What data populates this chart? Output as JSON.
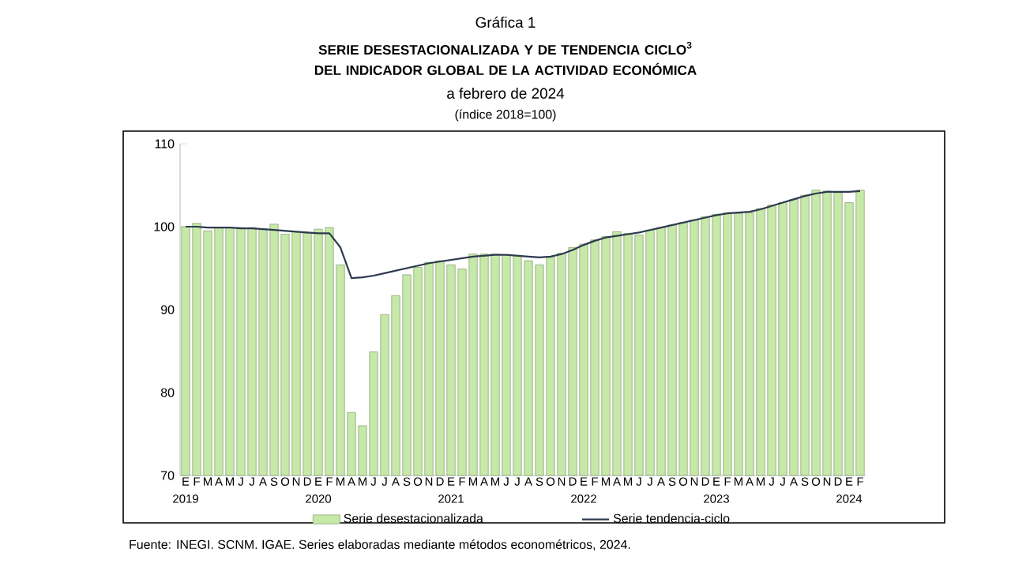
{
  "chart_data": {
    "type": "bar",
    "title": "SERIE DESESTACIONALIZADA Y DE TENDENCIA CICLO$^{3}$ DEL INDICADOR GLOBAL DE LA ACTIVIDAD ECONÓMICA",
    "subtitle": "a febrero de 2024",
    "categories": [
      "E 2019",
      "F",
      "M",
      "A",
      "M",
      "J",
      "J",
      "A",
      "S",
      "O",
      "N",
      "D",
      "E 2020",
      "F",
      "M",
      "A",
      "M",
      "J",
      "J",
      "A",
      "S",
      "O",
      "N",
      "D",
      "E 2021",
      "F",
      "M",
      "A",
      "M",
      "J",
      "J",
      "A",
      "S",
      "O",
      "N",
      "D",
      "E 2022",
      "F",
      "M",
      "A",
      "M",
      "J",
      "J",
      "A",
      "S",
      "O",
      "N",
      "D",
      "E 2023",
      "F",
      "M",
      "A",
      "M",
      "J",
      "J",
      "A",
      "S",
      "O",
      "N",
      "D",
      "E 2024",
      "F"
    ],
    "series": [
      {
        "name": "Serie desestacionalizada",
        "color": "#c6e8a8",
        "values": [
          100.0,
          100.4,
          99.5,
          99.9,
          99.9,
          99.9,
          99.9,
          99.7,
          100.3,
          99.1,
          99.4,
          99.2,
          99.7,
          99.9,
          95.4,
          77.6,
          76.0,
          84.9,
          89.4,
          91.7,
          94.2,
          95.1,
          95.7,
          95.9,
          95.4,
          94.9,
          96.7,
          96.7,
          96.7,
          96.6,
          96.5,
          95.9,
          95.4,
          96.3,
          96.8,
          97.5,
          97.9,
          98.4,
          98.8,
          99.4,
          99.2,
          99.0,
          99.6,
          99.9,
          100.2,
          100.5,
          100.8,
          101.2,
          101.5,
          101.7,
          101.6,
          101.7,
          102.2,
          102.6,
          102.9,
          103.3,
          103.8,
          104.4,
          104.3,
          104.1,
          102.9,
          104.4
        ]
      },
      {
        "name": "Serie tendencia-ciclo",
        "type": "line",
        "color": "#2e3a4f",
        "values": [
          100.0,
          100.0,
          99.9,
          99.9,
          99.9,
          99.8,
          99.8,
          99.7,
          99.6,
          99.5,
          99.4,
          99.3,
          99.2,
          99.2,
          97.5,
          93.8,
          93.9,
          94.1,
          94.4,
          94.7,
          95.0,
          95.3,
          95.6,
          95.8,
          96.0,
          96.2,
          96.4,
          96.5,
          96.6,
          96.6,
          96.5,
          96.4,
          96.3,
          96.4,
          96.7,
          97.2,
          97.8,
          98.3,
          98.7,
          98.9,
          99.1,
          99.3,
          99.6,
          99.9,
          100.2,
          100.5,
          100.8,
          101.1,
          101.4,
          101.6,
          101.7,
          101.8,
          102.1,
          102.5,
          102.9,
          103.3,
          103.7,
          104.0,
          104.2,
          104.2,
          104.2,
          104.3
        ]
      }
    ],
    "ylim": [
      70,
      110
    ],
    "yticks": [
      70,
      80,
      90,
      100,
      110
    ],
    "legend": "bottom",
    "annotations": [
      "Gráfica 1",
      "(índice 2018=100)",
      "Fuente: INEGI. SCNM. IGAE. Series elaboradas mediante métodos econométricos, 2024."
    ]
  }
}
